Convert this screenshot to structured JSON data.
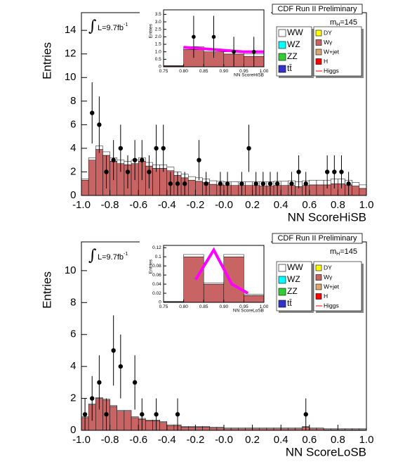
{
  "chart_data": [
    {
      "type": "histogram",
      "x_label": "NN ScoreHiSB",
      "y_label": "Entries",
      "experiment": "CDF Run II Preliminary",
      "lumi": "L=9.7fb",
      "lumi_exp": "-1",
      "mass": "m",
      "mass_sub": "H",
      "mass_value": "=145",
      "bins": [
        -1,
        -0.95,
        -0.9,
        -0.85,
        -0.8,
        -0.75,
        -0.7,
        -0.65,
        -0.6,
        -0.55,
        -0.5,
        -0.45,
        -0.4,
        -0.35,
        -0.3,
        -0.25,
        -0.2,
        -0.15,
        -0.1,
        -0.05,
        0,
        0.05,
        0.1,
        0.15,
        0.2,
        0.25,
        0.3,
        0.35,
        0.4,
        0.45,
        0.5,
        0.55,
        0.6,
        0.65,
        0.7,
        0.75,
        0.8,
        0.85,
        0.9,
        0.95,
        1
      ],
      "series": [
        {
          "color": "#c86464",
          "values": [
            1.3,
            3.0,
            3.9,
            3.4,
            2.9,
            2.7,
            2.6,
            2.7,
            2.9,
            2.5,
            2.3,
            2.3,
            2.1,
            1.7,
            1.5,
            1.3,
            1.2,
            1.1,
            0.95,
            0.9,
            0.85,
            0.85,
            0.85,
            0.85,
            0.85,
            0.8,
            0.8,
            0.85,
            0.85,
            0.85,
            0.75,
            0.85,
            0.9,
            0.9,
            0.9,
            1.0,
            1.0,
            0.9,
            0.8,
            0.6
          ]
        },
        {
          "color": "#ffffff",
          "values": [
            0.1,
            0.2,
            0.3,
            0.3,
            0.3,
            0.3,
            0.3,
            0.3,
            0.3,
            0.3,
            0.3,
            0.3,
            0.3,
            0.3,
            0.3,
            0.3,
            0.3,
            0.3,
            0.3,
            0.3,
            0.3,
            0.3,
            0.3,
            0.3,
            0.3,
            0.35,
            0.35,
            0.35,
            0.35,
            0.4,
            0.4,
            0.4,
            0.4,
            0.4,
            0.4,
            0.4,
            0.4,
            0.4,
            0.3,
            0.3
          ]
        }
      ],
      "data": {
        "x": [
          -0.925,
          -0.875,
          -0.825,
          -0.775,
          -0.725,
          -0.675,
          -0.625,
          -0.575,
          -0.525,
          -0.475,
          -0.425,
          -0.375,
          -0.325,
          -0.275,
          -0.175,
          -0.125,
          -0.025,
          0.025,
          0.125,
          0.175,
          0.225,
          0.275,
          0.325,
          0.375,
          0.475,
          0.525,
          0.575,
          0.725,
          0.775,
          0.825,
          0.875
        ],
        "values": [
          7,
          6,
          2,
          3,
          4,
          2,
          3,
          3,
          2,
          4,
          4,
          1,
          1,
          1,
          3,
          1,
          1,
          1,
          1,
          4,
          1,
          1,
          1,
          1,
          1,
          2,
          1,
          2,
          2,
          2,
          1
        ],
        "errors": [
          2.6,
          2.4,
          1.4,
          1.7,
          2,
          1.4,
          1.7,
          1.7,
          1.4,
          2,
          2,
          1,
          1,
          1,
          1.7,
          1,
          1,
          1,
          1,
          2,
          1,
          1,
          1,
          1,
          1,
          1.4,
          1,
          1.4,
          1.4,
          1.4,
          1
        ]
      },
      "xlim": [
        -1,
        1
      ],
      "ylim": [
        0,
        15.5
      ],
      "xticks": [
        {
          "value": -1,
          "label": "-1.0"
        },
        -0.8,
        -0.6,
        -0.4,
        -0.2,
        {
          "value": 0,
          "label": "-0.0"
        },
        0.2,
        0.4,
        0.6,
        0.8,
        {
          "value": 1,
          "label": "1.0"
        }
      ],
      "yticks": [
        0,
        2,
        4,
        6,
        8,
        10,
        12,
        14
      ],
      "legend": [
        {
          "name": "WW",
          "color": "#ffffff"
        },
        {
          "name": "WZ",
          "color": "#00ffff"
        },
        {
          "name": "ZZ",
          "color": "#33cc33"
        },
        {
          "name": "tt̄",
          "color": "#3333cc"
        },
        {
          "name": "DY",
          "color": "#ffff00"
        },
        {
          "name": "Wγ",
          "color": "#c86464"
        },
        {
          "name": "W+jet",
          "color": "#d9a870"
        },
        {
          "name": "H",
          "color": "#ff0000"
        },
        {
          "name": "Higgs",
          "color": "#ff0000",
          "line": true
        }
      ],
      "inset": {
        "type": "histogram",
        "x_label": "NN ScoreHiSB",
        "y_label": "Entries",
        "bins": [
          0.75,
          0.8,
          0.85,
          0.9,
          0.95,
          1
        ],
        "series": [
          {
            "color": "#c86464",
            "values": [
              0.05,
              1.15,
              1.0,
              0.85,
              0.7
            ]
          },
          {
            "color": "#ffffff",
            "values": [
              0.03,
              0.2,
              0.15,
              0.15,
              0.15
            ]
          }
        ],
        "band": {
          "color": "#ff00ff",
          "x": [
            0.8,
            0.85,
            0.9,
            0.95,
            1.0
          ],
          "values": [
            1.3,
            1.2,
            1.1,
            1.0,
            1.0
          ]
        },
        "data": {
          "x": [
            0.825,
            0.875,
            0.925,
            0.975
          ],
          "values": [
            2,
            2,
            1,
            1
          ],
          "errors": [
            1.4,
            1.4,
            1,
            1
          ]
        },
        "xlim": [
          0.75,
          1
        ],
        "ylim": [
          0,
          3.8
        ],
        "xticks": [
          0.75,
          {
            "value": 0.8,
            "label": "0.80"
          },
          0.85,
          {
            "value": 0.9,
            "label": "0.90"
          },
          0.95,
          {
            "value": 1,
            "label": "1.00"
          }
        ],
        "yticks": [
          0,
          0.5,
          {
            "value": 1,
            "label": "1.0"
          },
          1.5,
          {
            "value": 2,
            "label": "2.0"
          },
          2.5,
          {
            "value": 3,
            "label": "3.0"
          },
          3.5
        ]
      }
    },
    {
      "type": "histogram",
      "x_label": "NN ScoreLoSB",
      "y_label": "Entries",
      "experiment": "CDF Run II Preliminary",
      "lumi": "L=9.7fb",
      "lumi_exp": "-1",
      "mass": "m",
      "mass_sub": "H",
      "mass_value": "=145",
      "bins": [
        -1,
        -0.95,
        -0.9,
        -0.85,
        -0.8,
        -0.75,
        -0.7,
        -0.65,
        -0.6,
        -0.55,
        -0.5,
        -0.45,
        -0.4,
        -0.35,
        -0.3,
        -0.25,
        -0.2,
        -0.15,
        -0.1,
        -0.05,
        0,
        0.05,
        0.1,
        0.15,
        0.2,
        0.25,
        0.3,
        0.35,
        0.4,
        0.45,
        0.5,
        0.55,
        0.6,
        0.65,
        0.7,
        0.75,
        0.8,
        0.85,
        0.9,
        0.95,
        1
      ],
      "series": [
        {
          "color": "#c86464",
          "values": [
            0.8,
            1.6,
            2.0,
            1.9,
            1.5,
            1.2,
            1.2,
            0.8,
            0.7,
            0.6,
            0.6,
            0.5,
            0.3,
            0.3,
            0.2,
            0.2,
            0.2,
            0.2,
            0.15,
            0.15,
            0.1,
            0.1,
            0.1,
            0.1,
            0.1,
            0.1,
            0.1,
            0.1,
            0.1,
            0.1,
            0.1,
            0.2,
            0.1,
            0.1,
            0.05,
            0.05,
            0.05,
            0.05,
            0.05,
            0.05
          ]
        },
        {
          "color": "#ffffff",
          "values": [
            0.05,
            0.05,
            0.05,
            0.05,
            0.05,
            0.05,
            0.05,
            0.05,
            0.05,
            0.05,
            0.05,
            0.05,
            0.05,
            0.05,
            0.05,
            0.05,
            0.05,
            0.05,
            0.05,
            0.05,
            0.05,
            0.05,
            0.05,
            0.05,
            0.05,
            0.05,
            0.05,
            0.05,
            0.05,
            0.05,
            0.05,
            0.05,
            0.05,
            0.05,
            0.05,
            0.05,
            0.05,
            0.05,
            0.05,
            0.05
          ]
        }
      ],
      "data": {
        "x": [
          -0.975,
          -0.925,
          -0.875,
          -0.825,
          -0.775,
          -0.725,
          -0.625,
          -0.575,
          -0.475,
          -0.325,
          0.575
        ],
        "values": [
          1,
          2,
          3,
          1,
          5,
          4,
          3,
          1,
          1,
          1,
          1
        ],
        "errors": [
          1,
          1.4,
          1.7,
          1,
          2.2,
          2,
          1.7,
          1,
          1,
          1,
          1
        ]
      },
      "xlim": [
        -1,
        1
      ],
      "ylim": [
        0,
        11.8
      ],
      "xticks": [
        {
          "value": -1,
          "label": "-1.0"
        },
        -0.8,
        -0.6,
        -0.4,
        -0.2,
        {
          "value": 0,
          "label": "-0.0"
        },
        0.2,
        0.4,
        0.6,
        0.8,
        {
          "value": 1,
          "label": "1.0"
        }
      ],
      "yticks": [
        0,
        2,
        4,
        6,
        8,
        10
      ],
      "legend": [
        {
          "name": "WW",
          "color": "#ffffff"
        },
        {
          "name": "WZ",
          "color": "#00ffff"
        },
        {
          "name": "ZZ",
          "color": "#33cc33"
        },
        {
          "name": "tt̄",
          "color": "#3333cc"
        },
        {
          "name": "DY",
          "color": "#ffff00"
        },
        {
          "name": "Wγ",
          "color": "#c86464"
        },
        {
          "name": "W+jet",
          "color": "#d9a870"
        },
        {
          "name": "H",
          "color": "#ff0000"
        },
        {
          "name": "Higgs",
          "color": "#ff0000",
          "line": true
        }
      ],
      "inset": {
        "type": "histogram",
        "x_label": "NN ScoreLoSB",
        "y_label": "Entries",
        "bins": [
          0.75,
          0.8,
          0.85,
          0.9,
          0.95,
          1
        ],
        "series": [
          {
            "color": "#c86464",
            "values": [
              0.001,
              0.1,
              0.04,
              0.1,
              0.015
            ]
          },
          {
            "color": "#ffffff",
            "values": [
              0.001,
              0.005,
              0.003,
              0.005,
              0.003
            ]
          }
        ],
        "band": {
          "color": "#ff00ff",
          "x": [
            0.83,
            0.875,
            0.92,
            0.96
          ],
          "values": [
            0.05,
            0.115,
            0.04,
            0.02
          ]
        },
        "xlim": [
          0.75,
          1
        ],
        "ylim": [
          0,
          0.125
        ],
        "xticks": [
          0.75,
          {
            "value": 0.8,
            "label": "0.80"
          },
          0.85,
          {
            "value": 0.9,
            "label": "0.90"
          },
          0.95,
          {
            "value": 1,
            "label": "1.00"
          }
        ],
        "yticks": [
          0,
          0.02,
          0.04,
          0.06,
          0.08,
          0.1,
          0.12
        ]
      }
    }
  ]
}
